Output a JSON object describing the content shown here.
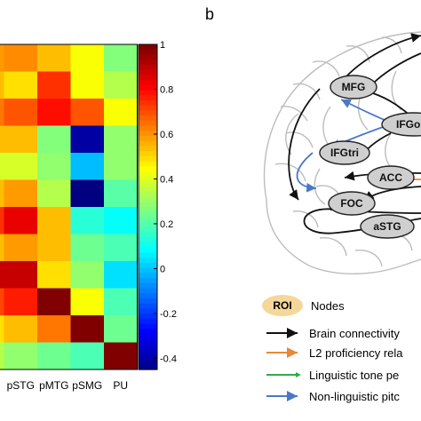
{
  "panel_b": {
    "label": "b"
  },
  "chart_data": {
    "type": "heatmap",
    "columns": [
      "pSTG",
      "pMTG",
      "pSMG",
      "PU"
    ],
    "partial_column_count": 1,
    "values": [
      [
        0.6,
        0.62,
        0.55,
        0.45,
        0.28
      ],
      [
        0.55,
        0.5,
        0.75,
        0.45,
        0.35
      ],
      [
        0.65,
        0.7,
        0.8,
        0.7,
        0.45
      ],
      [
        0.55,
        0.55,
        0.28,
        -0.4,
        0.3
      ],
      [
        0.4,
        0.4,
        0.3,
        0.0,
        0.3
      ],
      [
        0.55,
        0.6,
        0.35,
        -0.45,
        0.22
      ],
      [
        0.75,
        0.85,
        0.55,
        0.15,
        0.1
      ],
      [
        0.55,
        0.6,
        0.55,
        0.25,
        0.2
      ],
      [
        0.9,
        0.9,
        0.5,
        0.3,
        0.05
      ],
      [
        0.72,
        0.78,
        1.0,
        0.45,
        0.2
      ],
      [
        0.5,
        0.55,
        0.65,
        1.0,
        0.25
      ],
      [
        0.35,
        0.3,
        0.25,
        0.2,
        1.0
      ]
    ],
    "colorbar": {
      "min": -0.45,
      "max": 1,
      "ticks": [
        "1",
        "0.8",
        "0.6",
        "0.4",
        "0.2",
        "0",
        "-0.2",
        "-0.4"
      ],
      "tick_values": [
        1,
        0.8,
        0.6,
        0.4,
        0.2,
        0,
        -0.2,
        -0.4
      ]
    }
  },
  "diagram": {
    "nodes": [
      "MFG",
      "IFGo",
      "IFGtri",
      "ACC",
      "FOC",
      "aSTG"
    ],
    "colors": {
      "node_fill": "#cfcfcf",
      "brain_outline": "#bdbdbd",
      "connectivity": "#111111",
      "proficiency": "#e8893a",
      "linguistic": "#2faa4a",
      "nonlinguistic": "#4a78c8",
      "roi_fill": "#f6d79a"
    }
  },
  "legend": {
    "roi_badge": "ROI",
    "nodes_label": "Nodes",
    "items": [
      {
        "label": "Brain connectivity",
        "color": "#111111"
      },
      {
        "label": "L2 proficiency rela",
        "color": "#e8893a"
      },
      {
        "label": "Linguistic tone pe",
        "color": "#2faa4a"
      },
      {
        "label": "Non-linguistic pitc",
        "color": "#4a78c8"
      }
    ]
  }
}
